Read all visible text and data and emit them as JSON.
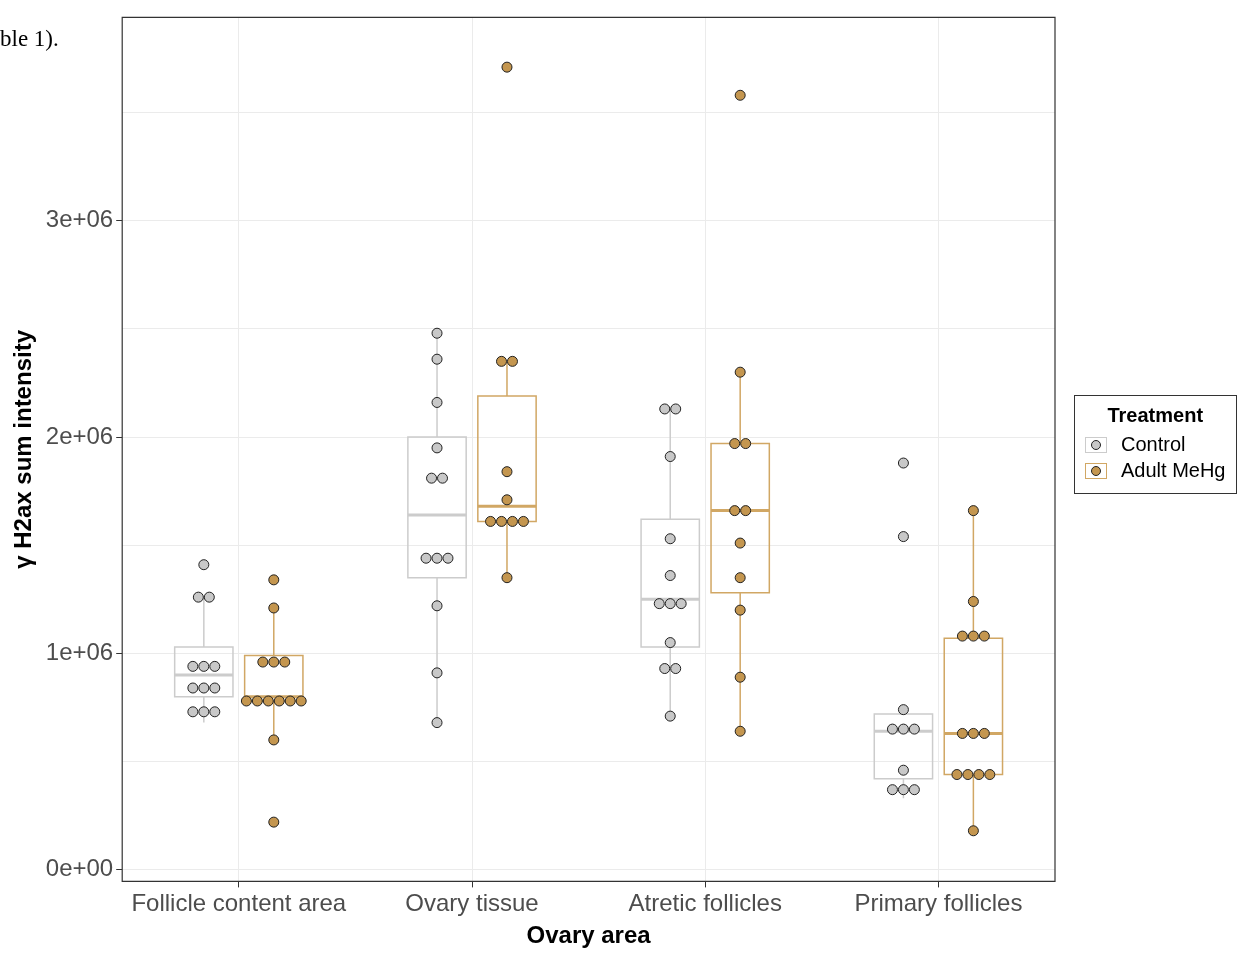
{
  "chart_data": {
    "type": "box",
    "xlabel": "Ovary area",
    "ylabel": "γ H2ax sum intensity",
    "legend_title": "Treatment",
    "legend": "right",
    "grid": true,
    "annotations": [
      "ble 1)."
    ],
    "categories": [
      "Follicle content area",
      "Ovary tissue",
      "Atretic follicles",
      "Primary follicles"
    ],
    "ylim": [
      -54000,
      3940000
    ],
    "yticks": [
      {
        "value": 0,
        "label": "0e+00"
      },
      {
        "value": 500000,
        "label": null
      },
      {
        "value": 1000000,
        "label": "1e+06"
      },
      {
        "value": 1500000,
        "label": null
      },
      {
        "value": 2000000,
        "label": "2e+06"
      },
      {
        "value": 2500000,
        "label": null
      },
      {
        "value": 3000000,
        "label": "3e+06"
      },
      {
        "value": 3500000,
        "label": null
      }
    ],
    "series": [
      {
        "name": "Control",
        "color": "#cccccc",
        "boxes": [
          {
            "low": 680000,
            "q1": 800000,
            "median": 900000,
            "q3": 1030000,
            "high": 1260000
          },
          {
            "low": 680000,
            "q1": 1350000,
            "median": 1640000,
            "q3": 2000000,
            "high": 2480000
          },
          {
            "low": 710000,
            "q1": 1030000,
            "median": 1250000,
            "q3": 1620000,
            "high": 2130000
          },
          {
            "low": 330000,
            "q1": 420000,
            "median": 640000,
            "q3": 720000,
            "high": 740000
          }
        ]
      },
      {
        "name": "Adult MeHg",
        "color": "#d1a764",
        "boxes": [
          {
            "low": 600000,
            "q1": 780000,
            "median": 800000,
            "q3": 990000,
            "high": 1210000
          },
          {
            "low": 1350000,
            "q1": 1610000,
            "median": 1680000,
            "q3": 2190000,
            "high": 2350000
          },
          {
            "low": 640000,
            "q1": 1280000,
            "median": 1660000,
            "q3": 1970000,
            "high": 2300000
          },
          {
            "low": 180000,
            "q1": 440000,
            "median": 630000,
            "q3": 1070000,
            "high": 1660000
          }
        ]
      },
      {
        "type": "scatter",
        "color": "#c8c8c8",
        "x": [
          "Follicle content area",
          "Follicle content area",
          "Follicle content area",
          "Follicle content area",
          "Follicle content area",
          "Follicle content area",
          "Follicle content area",
          "Follicle content area",
          "Follicle content area",
          "Follicle content area",
          "Follicle content area",
          "Follicle content area",
          "Ovary tissue",
          "Ovary tissue",
          "Ovary tissue",
          "Ovary tissue",
          "Ovary tissue",
          "Ovary tissue",
          "Ovary tissue",
          "Ovary tissue",
          "Ovary tissue",
          "Ovary tissue",
          "Ovary tissue",
          "Ovary tissue",
          "Atretic follicles",
          "Atretic follicles",
          "Atretic follicles",
          "Atretic follicles",
          "Atretic follicles",
          "Atretic follicles",
          "Atretic follicles",
          "Atretic follicles",
          "Atretic follicles",
          "Atretic follicles",
          "Atretic follicles",
          "Atretic follicles",
          "Primary follicles",
          "Primary follicles",
          "Primary follicles",
          "Primary follicles",
          "Primary follicles",
          "Primary follicles",
          "Primary follicles",
          "Primary follicles",
          "Primary follicles",
          "Primary follicles"
        ],
        "values": [
          1410000,
          1260000,
          1260000,
          940000,
          940000,
          940000,
          840000,
          840000,
          840000,
          730000,
          730000,
          730000,
          2480000,
          2360000,
          2160000,
          1950000,
          1810000,
          1810000,
          1440000,
          1440000,
          1440000,
          1220000,
          910000,
          680000,
          2130000,
          2130000,
          1910000,
          1530000,
          1360000,
          1230000,
          1230000,
          1230000,
          1050000,
          930000,
          930000,
          710000,
          1880000,
          1540000,
          740000,
          650000,
          650000,
          650000,
          460000,
          370000,
          370000,
          370000
        ]
      },
      {
        "type": "scatter",
        "color": "#c4964f",
        "x": [
          "Follicle content area",
          "Follicle content area",
          "Follicle content area",
          "Follicle content area",
          "Follicle content area",
          "Follicle content area",
          "Follicle content area",
          "Follicle content area",
          "Follicle content area",
          "Follicle content area",
          "Follicle content area",
          "Follicle content area",
          "Follicle content area",
          "Ovary tissue",
          "Ovary tissue",
          "Ovary tissue",
          "Ovary tissue",
          "Ovary tissue",
          "Ovary tissue",
          "Ovary tissue",
          "Ovary tissue",
          "Ovary tissue",
          "Ovary tissue",
          "Atretic follicles",
          "Atretic follicles",
          "Atretic follicles",
          "Atretic follicles",
          "Atretic follicles",
          "Atretic follicles",
          "Atretic follicles",
          "Atretic follicles",
          "Atretic follicles",
          "Atretic follicles",
          "Atretic follicles",
          "Primary follicles",
          "Primary follicles",
          "Primary follicles",
          "Primary follicles",
          "Primary follicles",
          "Primary follicles",
          "Primary follicles",
          "Primary follicles",
          "Primary follicles",
          "Primary follicles",
          "Primary follicles",
          "Primary follicles",
          "Primary follicles"
        ],
        "values": [
          1340000,
          1210000,
          960000,
          960000,
          960000,
          780000,
          780000,
          780000,
          780000,
          780000,
          780000,
          600000,
          220000,
          3710000,
          2350000,
          2350000,
          1840000,
          1710000,
          1610000,
          1610000,
          1610000,
          1610000,
          1350000,
          3580000,
          2300000,
          1970000,
          1970000,
          1660000,
          1660000,
          1510000,
          1350000,
          1200000,
          890000,
          640000,
          1660000,
          1240000,
          1080000,
          1080000,
          1080000,
          630000,
          630000,
          630000,
          440000,
          440000,
          440000,
          440000,
          180000
        ]
      }
    ]
  }
}
